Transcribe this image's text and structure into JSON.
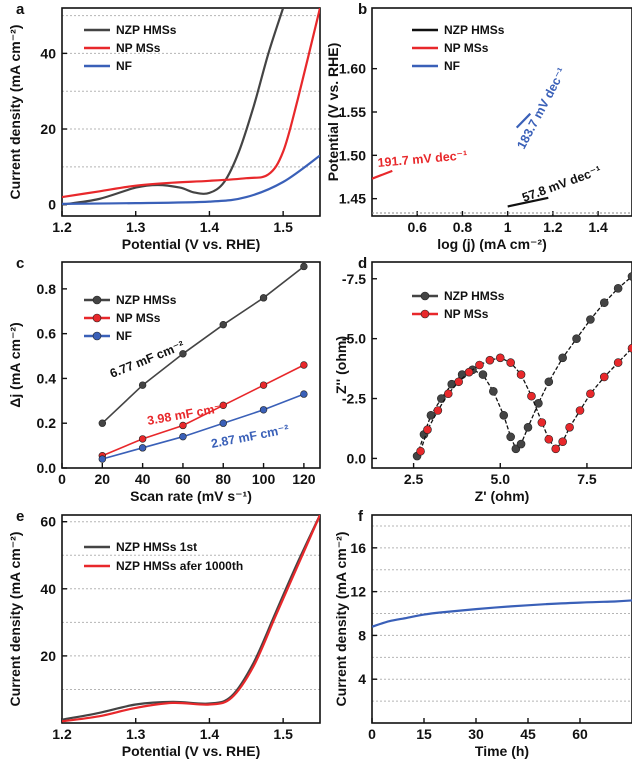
{
  "chart_data": [
    {
      "panel": "a",
      "type": "line",
      "xlabel": "Potential (V vs. RHE)",
      "ylabel": "Current density (mA cm⁻²)",
      "xlim": [
        1.2,
        1.55
      ],
      "ylim": [
        -3,
        52
      ],
      "xticks": [
        "1.2",
        "1.3",
        "1.4",
        "1.5"
      ],
      "yticks": [
        "0",
        "20",
        "40"
      ],
      "series": [
        {
          "name": "NZP HMSs",
          "color": "#444444",
          "x": [
            1.2,
            1.25,
            1.3,
            1.33,
            1.36,
            1.38,
            1.4,
            1.42,
            1.44,
            1.46,
            1.48,
            1.5
          ],
          "y": [
            0,
            1.5,
            4.5,
            5.2,
            4.5,
            3.2,
            3.1,
            6,
            14,
            26,
            40,
            52
          ]
        },
        {
          "name": "NP MSs",
          "color": "#e8282b",
          "x": [
            1.2,
            1.25,
            1.3,
            1.35,
            1.4,
            1.45,
            1.48,
            1.5,
            1.52,
            1.55
          ],
          "y": [
            2,
            3.5,
            5,
            5.8,
            6.3,
            7,
            8,
            14,
            28,
            52
          ]
        },
        {
          "name": "NF",
          "color": "#3a60b8",
          "x": [
            1.2,
            1.3,
            1.4,
            1.45,
            1.5,
            1.55
          ],
          "y": [
            0.2,
            0.4,
            0.8,
            2,
            6,
            13
          ]
        }
      ]
    },
    {
      "panel": "b",
      "type": "line",
      "xlabel": "log (j) (mA cm⁻²)",
      "ylabel": "Potential (V vs. RHE)",
      "xlim": [
        0.4,
        1.55
      ],
      "ylim": [
        1.43,
        1.67
      ],
      "xticks": [
        "0.6",
        "0.8",
        "1",
        "1.2",
        "1.4"
      ],
      "yticks": [
        "1.45",
        "1.50",
        "1.55",
        "1.60"
      ],
      "series": [
        {
          "name": "NZP HMSs",
          "color": "#111111",
          "x": [
            1.0,
            1.18
          ],
          "y": [
            1.441,
            1.451
          ]
        },
        {
          "name": "NP MSs",
          "color": "#e8282b",
          "x": [
            0.4,
            0.49
          ],
          "y": [
            1.473,
            1.482
          ]
        },
        {
          "name": "NF",
          "color": "#3a60b8",
          "x": [
            1.04,
            1.1
          ],
          "y": [
            1.532,
            1.548
          ]
        }
      ],
      "annotations": [
        "191.7 mV dec⁻¹",
        "183.7 mV dec⁻¹",
        "57.8 mV dec⁻¹"
      ]
    },
    {
      "panel": "c",
      "type": "line",
      "xlabel": "Scan rate (mV s⁻¹)",
      "ylabel": "Δj (mA cm⁻²)",
      "xlim": [
        0,
        128
      ],
      "ylim": [
        0,
        0.92
      ],
      "xticks": [
        "0",
        "20",
        "40",
        "60",
        "80",
        "100",
        "120"
      ],
      "yticks": [
        "0.0",
        "0.2",
        "0.4",
        "0.6",
        "0.8"
      ],
      "series": [
        {
          "name": "NZP HMSs",
          "color": "#444444",
          "x": [
            20,
            40,
            60,
            80,
            100,
            120
          ],
          "y": [
            0.2,
            0.37,
            0.51,
            0.64,
            0.76,
            0.9
          ]
        },
        {
          "name": "NP MSs",
          "color": "#e8282b",
          "x": [
            20,
            40,
            60,
            80,
            100,
            120
          ],
          "y": [
            0.055,
            0.13,
            0.19,
            0.28,
            0.37,
            0.46
          ]
        },
        {
          "name": "NF",
          "color": "#3a60b8",
          "x": [
            20,
            40,
            60,
            80,
            100,
            120
          ],
          "y": [
            0.04,
            0.09,
            0.14,
            0.2,
            0.26,
            0.33
          ]
        }
      ],
      "annotations": [
        "6.77 mF cm⁻²",
        "3.98 mF cm⁻²",
        "2.87 mF cm⁻²"
      ]
    },
    {
      "panel": "d",
      "type": "scatter",
      "xlabel": "Z' (ohm)",
      "ylabel": "Z'' (ohm)",
      "xlim": [
        1.3,
        8.8
      ],
      "ylim": [
        0.4,
        -8.2
      ],
      "xticks": [
        "2.5",
        "5.0",
        "7.5"
      ],
      "yticks": [
        "-7.5",
        "-5.0",
        "-2.5",
        "0.0"
      ],
      "series": [
        {
          "name": "NZP HMSs",
          "color": "#444444",
          "x": [
            2.6,
            2.8,
            3.0,
            3.3,
            3.6,
            3.9,
            4.2,
            4.5,
            4.8,
            5.1,
            5.3,
            5.45,
            5.6,
            5.8,
            6.1,
            6.4,
            6.8,
            7.2,
            7.6,
            8.0,
            8.4,
            8.8
          ],
          "y": [
            -0.1,
            -1.0,
            -1.8,
            -2.5,
            -3.1,
            -3.5,
            -3.7,
            -3.5,
            -2.8,
            -1.8,
            -0.9,
            -0.4,
            -0.6,
            -1.3,
            -2.3,
            -3.2,
            -4.2,
            -5.0,
            -5.8,
            -6.5,
            -7.1,
            -7.6
          ]
        },
        {
          "name": "NP MSs",
          "color": "#e8282b",
          "x": [
            2.7,
            2.9,
            3.2,
            3.5,
            3.8,
            4.1,
            4.4,
            4.7,
            5.0,
            5.3,
            5.6,
            5.9,
            6.2,
            6.4,
            6.6,
            6.8,
            7.0,
            7.3,
            7.6,
            8.0,
            8.4,
            8.8
          ],
          "y": [
            -0.3,
            -1.2,
            -2.0,
            -2.7,
            -3.2,
            -3.6,
            -3.9,
            -4.1,
            -4.2,
            -4.0,
            -3.5,
            -2.6,
            -1.5,
            -0.8,
            -0.4,
            -0.7,
            -1.3,
            -2.0,
            -2.7,
            -3.4,
            -4.0,
            -4.6
          ]
        }
      ]
    },
    {
      "panel": "e",
      "type": "line",
      "xlabel": "Potential (V vs. RHE)",
      "ylabel": "Current density (mA cm⁻²)",
      "xlim": [
        1.2,
        1.55
      ],
      "ylim": [
        0,
        62
      ],
      "xticks": [
        "1.2",
        "1.3",
        "1.4",
        "1.5"
      ],
      "yticks": [
        "20",
        "40",
        "60"
      ],
      "series": [
        {
          "name": "NZP HMSs 1st",
          "color": "#444444",
          "x": [
            1.2,
            1.25,
            1.3,
            1.35,
            1.4,
            1.43,
            1.46,
            1.49,
            1.52,
            1.55
          ],
          "y": [
            1,
            3,
            5.5,
            6.3,
            5.8,
            8,
            18,
            33,
            48,
            62
          ]
        },
        {
          "name": "NZP HMSs afer 1000th",
          "color": "#e8282b",
          "x": [
            1.2,
            1.25,
            1.3,
            1.35,
            1.4,
            1.43,
            1.46,
            1.49,
            1.52,
            1.55
          ],
          "y": [
            0.5,
            2,
            4.5,
            6,
            5.5,
            7.5,
            17,
            32,
            47,
            62
          ]
        }
      ]
    },
    {
      "panel": "f",
      "type": "line",
      "xlabel": "Time (h)",
      "ylabel": "Current density (mA cm⁻²)",
      "xlim": [
        0,
        75
      ],
      "ylim": [
        0,
        19
      ],
      "xticks": [
        "0",
        "15",
        "30",
        "45",
        "60"
      ],
      "yticks": [
        "4",
        "8",
        "12",
        "16"
      ],
      "series": [
        {
          "name": "",
          "color": "#3a60b8",
          "x": [
            0,
            5,
            10,
            15,
            20,
            30,
            40,
            50,
            60,
            70,
            75
          ],
          "y": [
            8.8,
            9.3,
            9.6,
            9.9,
            10.1,
            10.4,
            10.65,
            10.85,
            11.0,
            11.1,
            11.2
          ]
        }
      ]
    }
  ],
  "panels": {
    "a": {
      "label": "a",
      "xlabel": "Potential (V vs. RHE)",
      "ylabel": "Current density (mA cm⁻²)",
      "legend": [
        "NZP HMSs",
        "NP MSs",
        "NF"
      ]
    },
    "b": {
      "label": "b",
      "xlabel": "log (j) (mA cm⁻²)",
      "ylabel": "Potential (V vs. RHE)",
      "legend": [
        "NZP HMSs",
        "NP MSs",
        "NF"
      ],
      "ann1": "191.7 mV dec⁻¹",
      "ann2": "183.7 mV dec⁻¹",
      "ann3": "57.8 mV dec⁻¹"
    },
    "c": {
      "label": "c",
      "xlabel": "Scan rate (mV s⁻¹)",
      "ylabel": "Δj (mA cm⁻²)",
      "legend": [
        "NZP HMSs",
        "NP MSs",
        "NF"
      ],
      "ann1": "6.77 mF cm⁻²",
      "ann2": "3.98 mF cm⁻²",
      "ann3": "2.87 mF cm⁻²"
    },
    "d": {
      "label": "d",
      "xlabel": "Z' (ohm)",
      "ylabel": "Z'' (ohm)",
      "legend": [
        "NZP HMSs",
        "NP MSs"
      ]
    },
    "e": {
      "label": "e",
      "xlabel": "Potential (V vs. RHE)",
      "ylabel": "Current density (mA cm⁻²)",
      "legend": [
        "NZP HMSs 1st",
        "NZP HMSs afer 1000th"
      ]
    },
    "f": {
      "label": "f",
      "xlabel": "Time (h)",
      "ylabel": "Current density (mA cm⁻²)"
    }
  }
}
